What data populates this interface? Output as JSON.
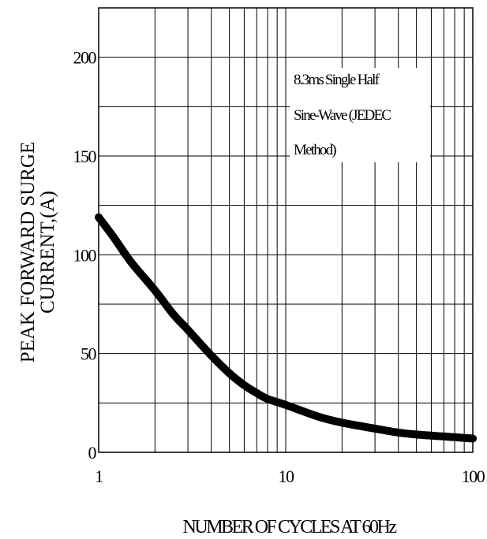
{
  "chart_data": {
    "type": "line",
    "title": "",
    "xlabel": "NUMBER OF CYCLES AT 60Hz",
    "ylabel_lines": [
      "PEAK FORWARD SURGE",
      "CURRENT,(A)"
    ],
    "x_scale": "log",
    "xlim": [
      1,
      100
    ],
    "ylim": [
      0,
      225
    ],
    "x_ticks": [
      1,
      10,
      100
    ],
    "x_tick_labels": [
      "1",
      "10",
      "100"
    ],
    "y_ticks": [
      0,
      50,
      100,
      150,
      200
    ],
    "y_tick_labels": [
      "0",
      "50",
      "100",
      "150",
      "200"
    ],
    "y_grid": [
      0,
      25,
      50,
      75,
      100,
      125,
      150,
      175,
      200,
      225
    ],
    "grid": true,
    "annotation_lines": [
      "8.3ms Single Half",
      "Sine-Wave (JEDEC",
      "Method)"
    ],
    "series": [
      {
        "color": "#000000",
        "x": [
          1,
          1.2,
          1.5,
          2,
          2.5,
          3,
          4,
          5,
          6,
          7,
          8,
          10,
          15,
          20,
          30,
          40,
          50,
          70,
          100
        ],
        "y": [
          119,
          109,
          96,
          82,
          70,
          62,
          49,
          40,
          34,
          30,
          27,
          24,
          18,
          15,
          12,
          10,
          9,
          8,
          7
        ]
      }
    ]
  }
}
